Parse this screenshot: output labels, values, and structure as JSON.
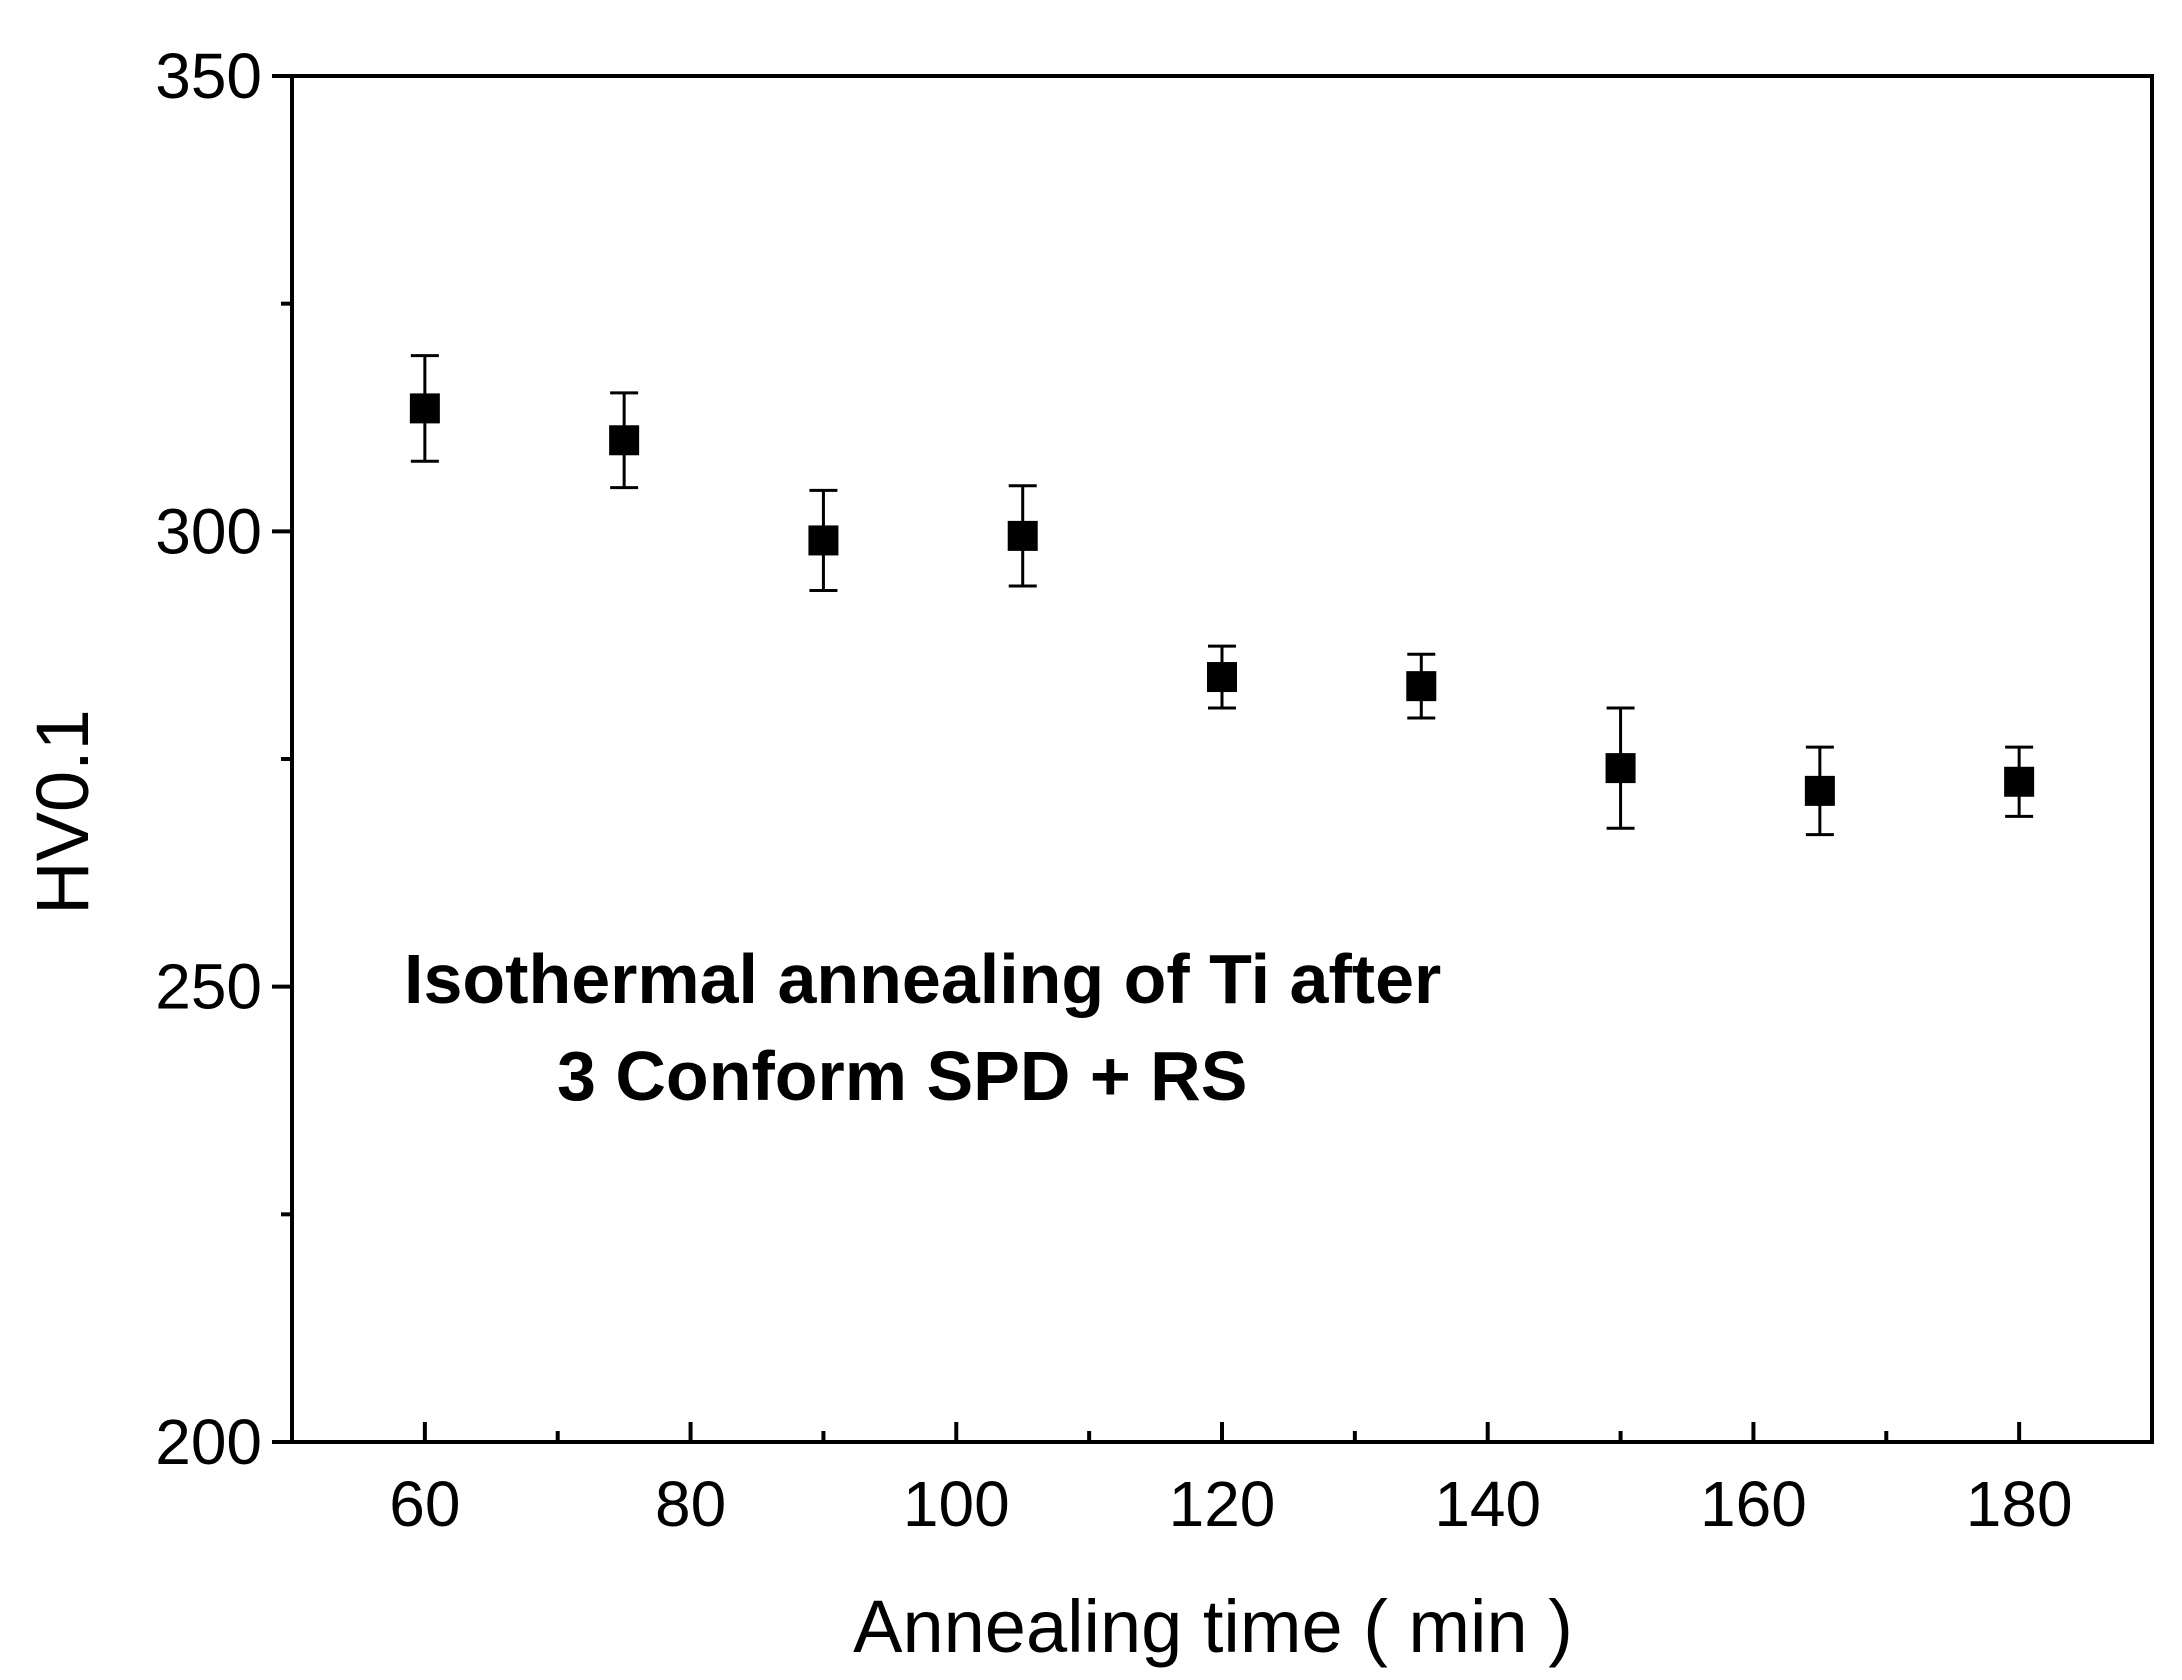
{
  "chart_data": {
    "type": "scatter",
    "title": "",
    "xlabel": "Annealing time ( min )",
    "ylabel": "HV0.1",
    "xlim": [
      50,
      190
    ],
    "ylim": [
      200,
      350
    ],
    "x_major_ticks": [
      60,
      80,
      100,
      120,
      140,
      160,
      180
    ],
    "x_minor_ticks": [
      70,
      90,
      110,
      130,
      150,
      170
    ],
    "x_tick_labels": [
      "60",
      "80",
      "100",
      "120",
      "140",
      "160",
      "180"
    ],
    "y_major_ticks": [
      200,
      250,
      300,
      350
    ],
    "y_minor_ticks": [
      225,
      275,
      325
    ],
    "y_tick_labels": [
      "200",
      "250",
      "300",
      "350"
    ],
    "grid": false,
    "marker": "square",
    "color": "#000000",
    "series": [
      {
        "name": "HV0.1",
        "x": [
          60,
          75,
          90,
          105,
          120,
          135,
          150,
          165,
          180
        ],
        "y": [
          313.5,
          310.0,
          299.0,
          299.5,
          284.0,
          283.0,
          274.0,
          271.5,
          272.5
        ],
        "err": [
          5.8,
          5.2,
          5.5,
          5.5,
          3.4,
          3.5,
          6.6,
          4.8,
          3.8
        ]
      }
    ],
    "annotations": [
      "Isothermal annealing of Ti after",
      "3 Conform SPD + RS"
    ]
  }
}
